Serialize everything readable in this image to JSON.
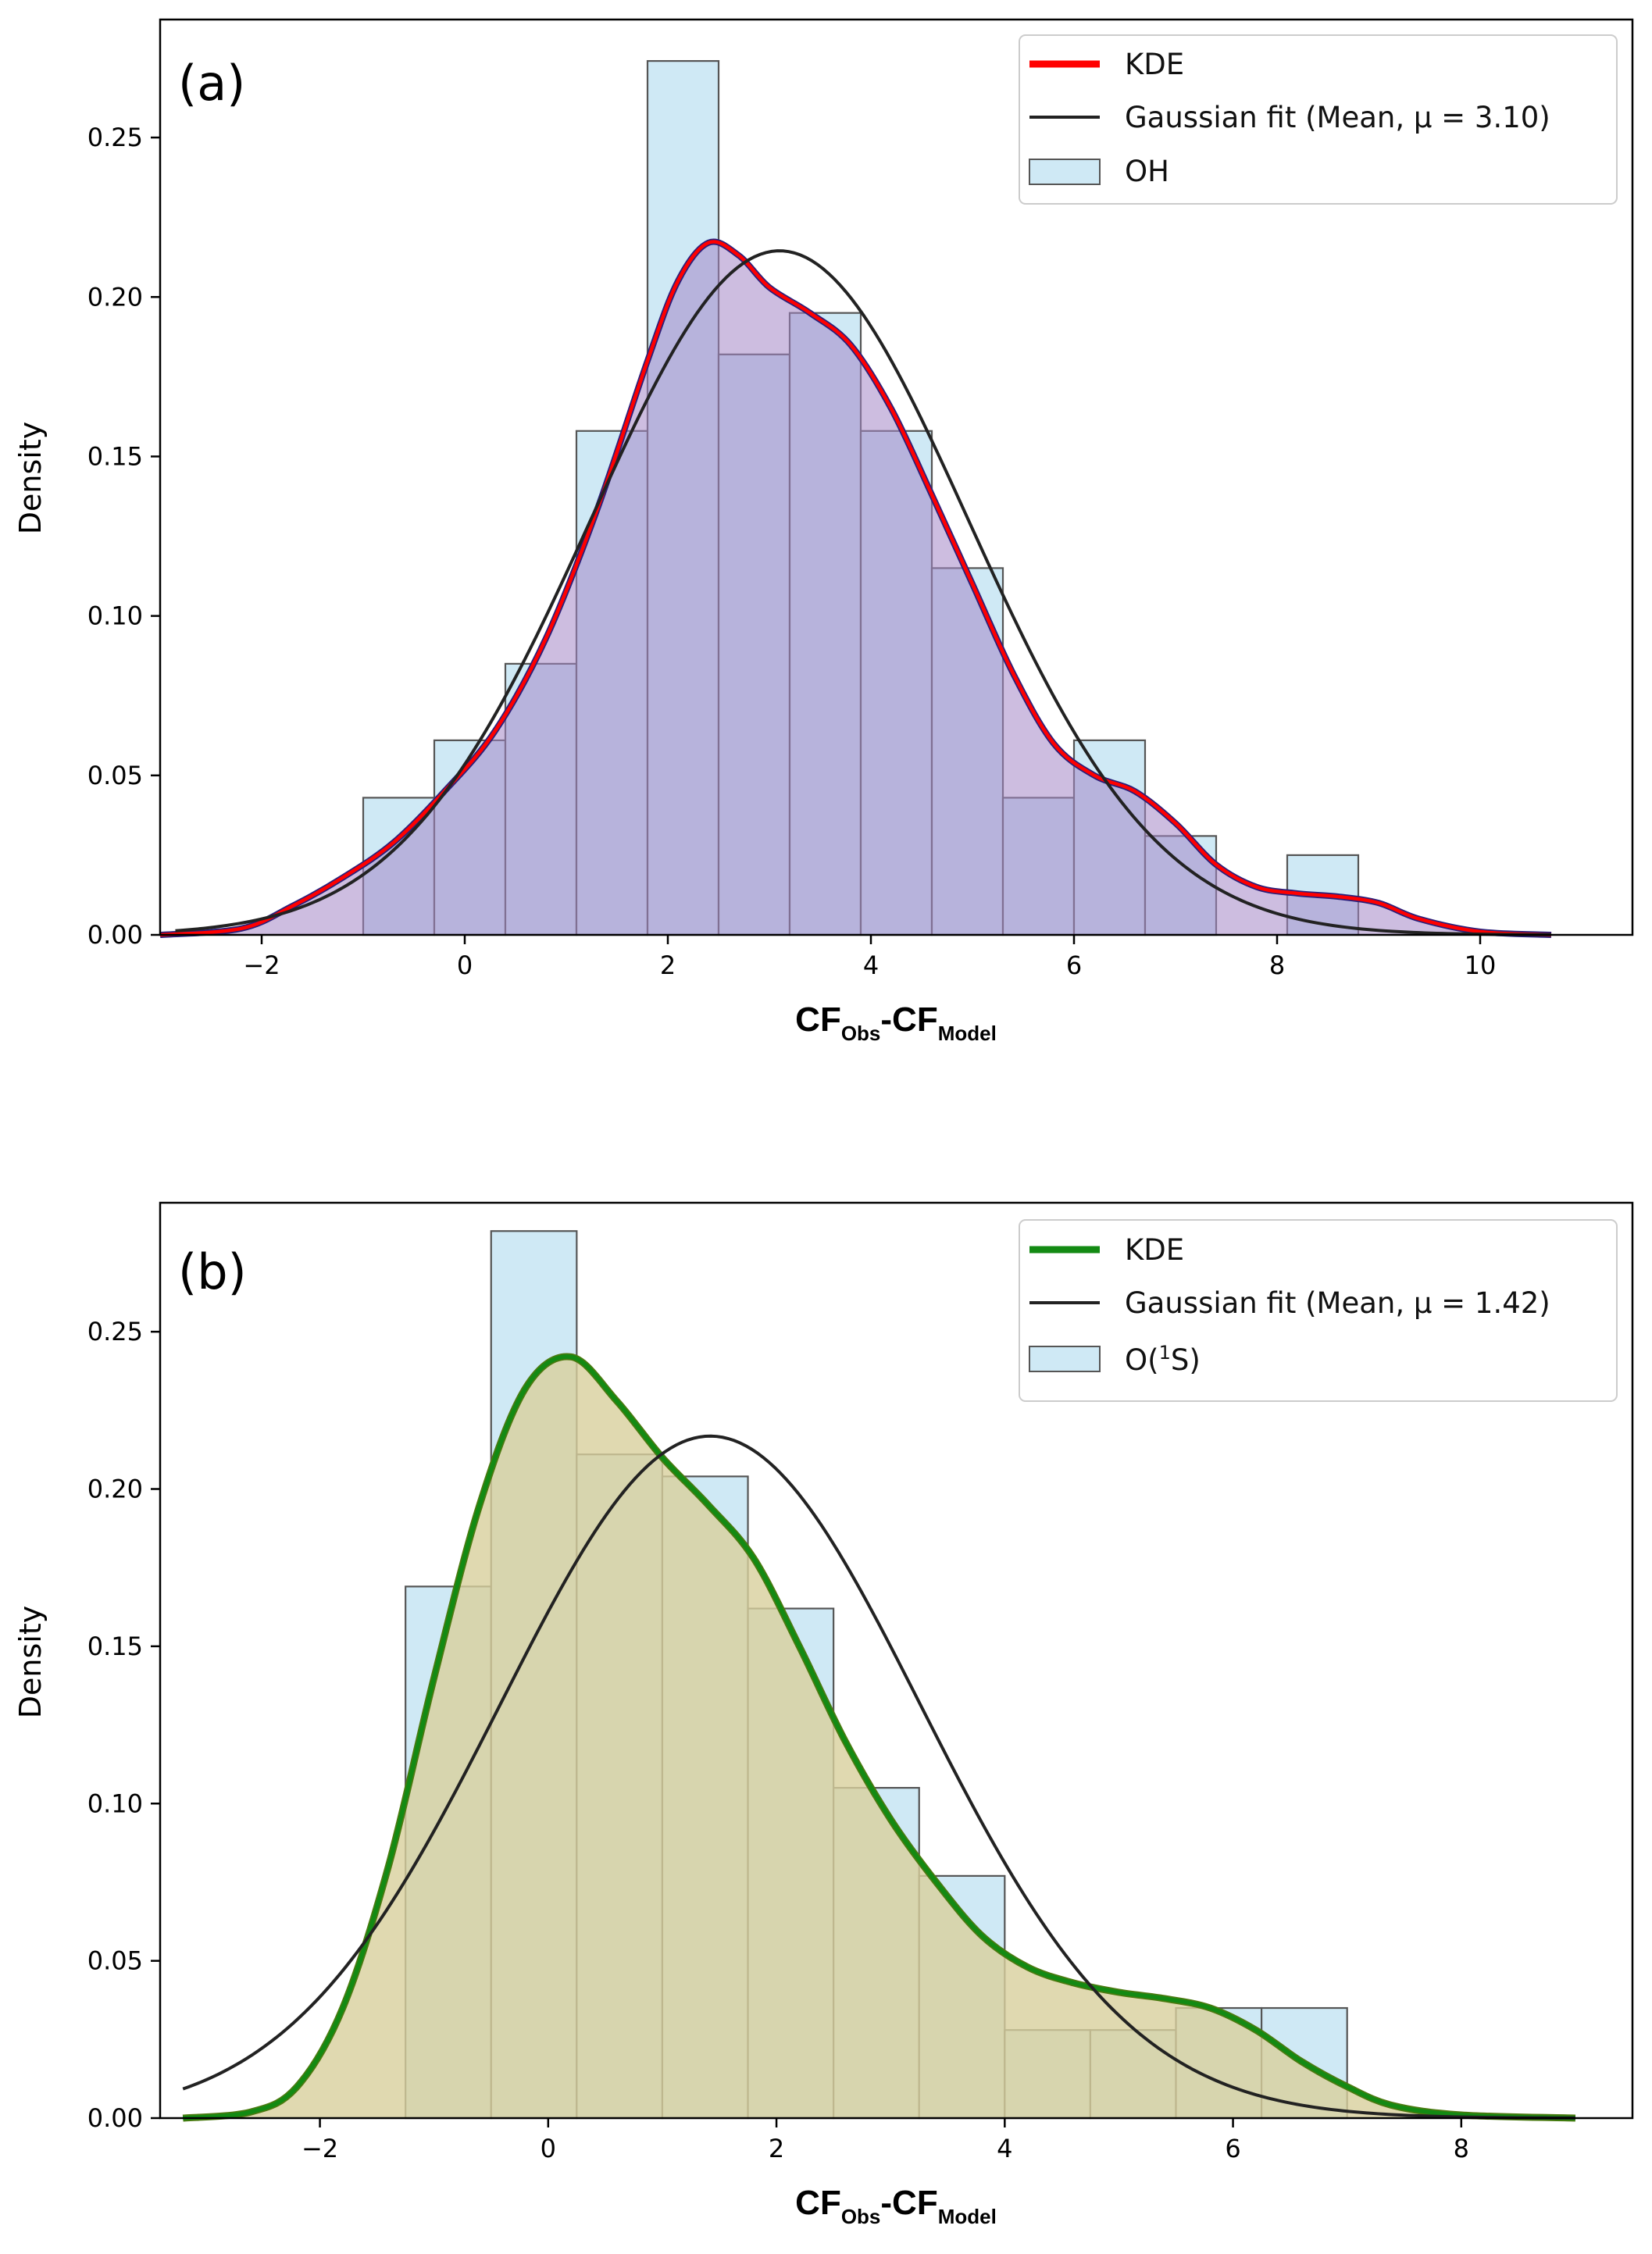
{
  "chart_data": [
    {
      "type": "histogram",
      "panel_label": "(a)",
      "xlabel": {
        "main": "CF",
        "sub1": "Obs",
        "sep": "-CF",
        "sub2": "Model"
      },
      "ylabel": "Density",
      "xlim": [
        -3.0,
        11.5
      ],
      "ylim": [
        0,
        0.287
      ],
      "xticks": [
        -2,
        0,
        2,
        4,
        6,
        8,
        10
      ],
      "xtick_labels": [
        "−2",
        "0",
        "2",
        "4",
        "6",
        "8",
        "10"
      ],
      "yticks": [
        0.0,
        0.05,
        0.1,
        0.15,
        0.2,
        0.25
      ],
      "ytick_labels": [
        "0.00",
        "0.05",
        "0.10",
        "0.15",
        "0.20",
        "0.25"
      ],
      "histogram": {
        "label": "OH",
        "bin_edges": [
          -1.0,
          -0.3,
          0.4,
          1.1,
          1.8,
          2.5,
          3.2,
          3.9,
          4.6,
          5.3,
          6.0,
          6.7,
          7.4,
          8.1,
          8.8
        ],
        "densities": [
          0.043,
          0.061,
          0.085,
          0.158,
          0.274,
          0.182,
          0.195,
          0.158,
          0.115,
          0.043,
          0.061,
          0.031,
          0.0,
          0.025
        ],
        "color": "#cfe9f5",
        "edgecolor": "#555555"
      },
      "kde": {
        "label": "KDE",
        "color": "#ff0000",
        "fill_color": "#a487c6",
        "points": [
          [
            -3.0,
            0.0
          ],
          [
            -2.2,
            0.002
          ],
          [
            -1.7,
            0.009
          ],
          [
            -1.2,
            0.018
          ],
          [
            -0.7,
            0.029
          ],
          [
            -0.2,
            0.045
          ],
          [
            0.3,
            0.064
          ],
          [
            0.8,
            0.093
          ],
          [
            1.3,
            0.133
          ],
          [
            1.8,
            0.18
          ],
          [
            2.1,
            0.205
          ],
          [
            2.4,
            0.217
          ],
          [
            2.7,
            0.213
          ],
          [
            3.0,
            0.203
          ],
          [
            3.4,
            0.195
          ],
          [
            3.8,
            0.185
          ],
          [
            4.2,
            0.165
          ],
          [
            4.6,
            0.138
          ],
          [
            5.0,
            0.11
          ],
          [
            5.4,
            0.082
          ],
          [
            5.8,
            0.06
          ],
          [
            6.2,
            0.05
          ],
          [
            6.6,
            0.045
          ],
          [
            7.0,
            0.035
          ],
          [
            7.4,
            0.022
          ],
          [
            7.8,
            0.015
          ],
          [
            8.2,
            0.013
          ],
          [
            8.6,
            0.012
          ],
          [
            9.0,
            0.01
          ],
          [
            9.4,
            0.005
          ],
          [
            10.0,
            0.001
          ],
          [
            10.7,
            0.0
          ]
        ]
      },
      "gaussian": {
        "label": "Gaussian fit (Mean, μ = 3.10)",
        "mean": 3.1,
        "sigma": 1.86,
        "x_range": [
          -2.85,
          10.7
        ],
        "color": "#222222"
      },
      "legend": {
        "location": "top-right",
        "entries": [
          "KDE",
          "Gaussian fit (Mean, μ = 3.10)",
          "OH"
        ]
      }
    },
    {
      "type": "histogram",
      "panel_label": "(b)",
      "xlabel": {
        "main": "CF",
        "sub1": "Obs",
        "sep": "-CF",
        "sub2": "Model"
      },
      "ylabel": "Density",
      "xlim": [
        -3.4,
        9.5
      ],
      "ylim": [
        0,
        0.291
      ],
      "xticks": [
        -2,
        0,
        2,
        4,
        6,
        8
      ],
      "xtick_labels": [
        "−2",
        "0",
        "2",
        "4",
        "6",
        "8"
      ],
      "yticks": [
        0.0,
        0.05,
        0.1,
        0.15,
        0.2,
        0.25
      ],
      "ytick_labels": [
        "0.00",
        "0.05",
        "0.10",
        "0.15",
        "0.20",
        "0.25"
      ],
      "histogram": {
        "label": "O(¹S)",
        "label_parts": {
          "pre": "O(",
          "sup": "1",
          "post": "S)"
        },
        "bin_edges": [
          -1.25,
          -0.5,
          0.25,
          1.0,
          1.75,
          2.5,
          3.25,
          4.0,
          4.75,
          5.5,
          6.25,
          7.0
        ],
        "densities": [
          0.169,
          0.282,
          0.211,
          0.204,
          0.162,
          0.105,
          0.077,
          0.028,
          0.028,
          0.035,
          0.035
        ],
        "color": "#cfe9f5",
        "edgecolor": "#555555"
      },
      "kde": {
        "label": "KDE",
        "color": "#138a13",
        "fill_color": "#d8cf9c",
        "points": [
          [
            -3.2,
            0.0
          ],
          [
            -2.6,
            0.002
          ],
          [
            -2.2,
            0.01
          ],
          [
            -1.8,
            0.035
          ],
          [
            -1.4,
            0.08
          ],
          [
            -1.0,
            0.14
          ],
          [
            -0.6,
            0.195
          ],
          [
            -0.2,
            0.232
          ],
          [
            0.2,
            0.242
          ],
          [
            0.6,
            0.228
          ],
          [
            1.0,
            0.21
          ],
          [
            1.4,
            0.195
          ],
          [
            1.8,
            0.178
          ],
          [
            2.2,
            0.15
          ],
          [
            2.6,
            0.12
          ],
          [
            3.0,
            0.095
          ],
          [
            3.4,
            0.075
          ],
          [
            3.8,
            0.058
          ],
          [
            4.2,
            0.048
          ],
          [
            4.6,
            0.043
          ],
          [
            5.0,
            0.04
          ],
          [
            5.4,
            0.038
          ],
          [
            5.8,
            0.035
          ],
          [
            6.2,
            0.028
          ],
          [
            6.6,
            0.018
          ],
          [
            7.0,
            0.01
          ],
          [
            7.4,
            0.004
          ],
          [
            8.0,
            0.001
          ],
          [
            9.0,
            0.0
          ]
        ]
      },
      "gaussian": {
        "label": "Gaussian fit (Mean, μ = 1.42)",
        "mean": 1.42,
        "sigma": 1.84,
        "x_range": [
          -3.2,
          9.0
        ],
        "color": "#222222"
      },
      "legend": {
        "location": "top-right",
        "entries": [
          "KDE",
          "Gaussian fit (Mean, μ = 1.42)",
          "O(¹S)"
        ]
      }
    }
  ]
}
